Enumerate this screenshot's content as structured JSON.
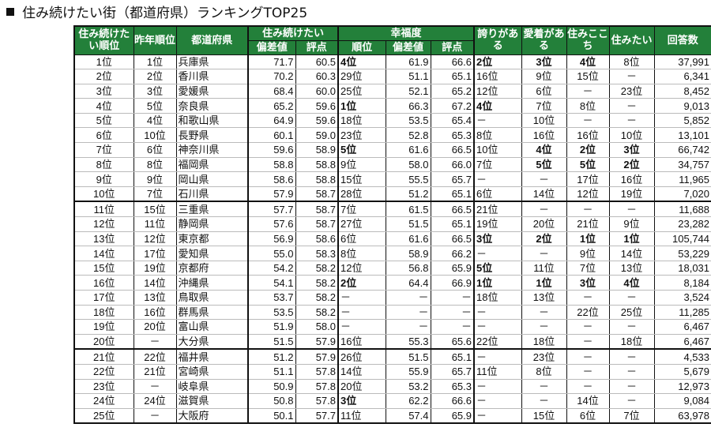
{
  "title": "住み続けたい街（都道府県）ランキングTOP25",
  "headers": {
    "rank": "住み続けたい順位",
    "last_year": "昨年順位",
    "prefecture": "都道府県",
    "sumitsuzuke": "住み続けたい",
    "happiness": "幸福度",
    "deviation": "偏差値",
    "score": "評点",
    "rank_short": "順位",
    "pride": "誇りがある",
    "attachment": "愛着がある",
    "comfort": "住みここち",
    "want_live": "住みたい",
    "responses": "回答数"
  },
  "rows": [
    [
      "1位",
      "1位",
      "兵庫県",
      "71.7",
      "60.5",
      "4位",
      "61.9",
      "66.6",
      "2位",
      "3位",
      "4位",
      "8位",
      "37,991"
    ],
    [
      "2位",
      "2位",
      "香川県",
      "70.2",
      "60.3",
      "29位",
      "51.1",
      "65.1",
      "16位",
      "9位",
      "15位",
      "－",
      "6,341"
    ],
    [
      "3位",
      "3位",
      "愛媛県",
      "68.4",
      "60.0",
      "25位",
      "52.1",
      "65.2",
      "12位",
      "6位",
      "－",
      "23位",
      "8,452"
    ],
    [
      "4位",
      "5位",
      "奈良県",
      "65.2",
      "59.6",
      "1位",
      "66.3",
      "67.2",
      "4位",
      "7位",
      "8位",
      "－",
      "9,013"
    ],
    [
      "5位",
      "4位",
      "和歌山県",
      "64.9",
      "59.6",
      "18位",
      "53.5",
      "65.4",
      "－",
      "10位",
      "－",
      "－",
      "5,852"
    ],
    [
      "6位",
      "10位",
      "長野県",
      "60.1",
      "59.0",
      "23位",
      "52.8",
      "65.3",
      "8位",
      "16位",
      "16位",
      "10位",
      "13,101"
    ],
    [
      "7位",
      "6位",
      "神奈川県",
      "59.6",
      "58.9",
      "5位",
      "61.6",
      "66.5",
      "10位",
      "4位",
      "2位",
      "3位",
      "66,742"
    ],
    [
      "8位",
      "8位",
      "福岡県",
      "58.8",
      "58.8",
      "9位",
      "58.0",
      "66.0",
      "7位",
      "5位",
      "5位",
      "2位",
      "34,757"
    ],
    [
      "9位",
      "9位",
      "岡山県",
      "58.6",
      "58.8",
      "15位",
      "55.5",
      "65.7",
      "－",
      "－",
      "17位",
      "16位",
      "11,965"
    ],
    [
      "10位",
      "7位",
      "石川県",
      "57.9",
      "58.7",
      "28位",
      "51.2",
      "65.1",
      "6位",
      "14位",
      "12位",
      "19位",
      "7,020"
    ],
    [
      "11位",
      "15位",
      "三重県",
      "57.7",
      "58.7",
      "7位",
      "61.5",
      "66.5",
      "21位",
      "－",
      "－",
      "－",
      "11,688"
    ],
    [
      "12位",
      "11位",
      "静岡県",
      "57.6",
      "58.7",
      "27位",
      "51.5",
      "65.1",
      "19位",
      "20位",
      "21位",
      "9位",
      "23,282"
    ],
    [
      "13位",
      "12位",
      "東京都",
      "56.9",
      "58.6",
      "6位",
      "61.6",
      "66.5",
      "3位",
      "2位",
      "1位",
      "1位",
      "105,744"
    ],
    [
      "14位",
      "17位",
      "愛知県",
      "55.0",
      "58.3",
      "8位",
      "58.9",
      "66.2",
      "－",
      "－",
      "9位",
      "14位",
      "53,229"
    ],
    [
      "15位",
      "19位",
      "京都府",
      "54.2",
      "58.2",
      "12位",
      "56.8",
      "65.9",
      "5位",
      "11位",
      "7位",
      "13位",
      "18,031"
    ],
    [
      "16位",
      "14位",
      "沖縄県",
      "54.1",
      "58.2",
      "2位",
      "64.4",
      "66.9",
      "1位",
      "1位",
      "3位",
      "4位",
      "8,184"
    ],
    [
      "17位",
      "13位",
      "鳥取県",
      "53.7",
      "58.2",
      "－",
      "－",
      "－",
      "18位",
      "13位",
      "－",
      "－",
      "3,524"
    ],
    [
      "18位",
      "16位",
      "群馬県",
      "53.5",
      "58.2",
      "－",
      "－",
      "－",
      "－",
      "－",
      "22位",
      "25位",
      "11,285"
    ],
    [
      "19位",
      "20位",
      "富山県",
      "51.9",
      "58.0",
      "－",
      "－",
      "－",
      "－",
      "－",
      "－",
      "－",
      "6,467"
    ],
    [
      "20位",
      "－",
      "大分県",
      "51.5",
      "57.9",
      "16位",
      "55.3",
      "65.6",
      "22位",
      "18位",
      "－",
      "18位",
      "6,467"
    ],
    [
      "21位",
      "22位",
      "福井県",
      "51.2",
      "57.9",
      "26位",
      "51.5",
      "65.1",
      "－",
      "23位",
      "－",
      "－",
      "4,533"
    ],
    [
      "22位",
      "21位",
      "宮崎県",
      "51.1",
      "57.8",
      "14位",
      "55.9",
      "65.7",
      "11位",
      "8位",
      "－",
      "－",
      "5,679"
    ],
    [
      "23位",
      "－",
      "岐阜県",
      "50.9",
      "57.8",
      "20位",
      "53.2",
      "65.3",
      "－",
      "－",
      "－",
      "－",
      "12,973"
    ],
    [
      "24位",
      "24位",
      "滋賀県",
      "50.8",
      "57.8",
      "3位",
      "62.2",
      "66.6",
      "－",
      "－",
      "14位",
      "－",
      "9,084"
    ],
    [
      "25位",
      "－",
      "大阪府",
      "50.1",
      "57.7",
      "11位",
      "57.4",
      "65.9",
      "－",
      "15位",
      "6位",
      "7位",
      "63,978"
    ]
  ],
  "colors": {
    "header_bg": "#23803a",
    "header_text": "#ffffff"
  }
}
